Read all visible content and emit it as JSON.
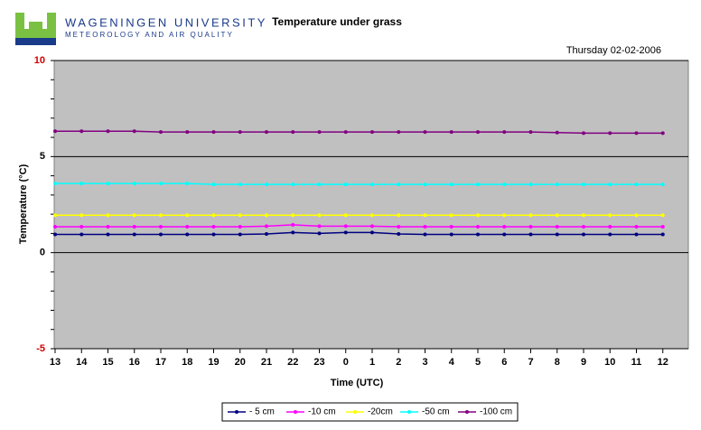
{
  "header": {
    "university": "WAGENINGEN UNIVERSITY",
    "department": "METEOROLOGY AND AIR QUALITY"
  },
  "chart_data": {
    "type": "line",
    "title": "Temperature under grass",
    "subtitle": "Thursday 02-02-2006",
    "x_label": "Time (UTC)",
    "y_label": "Temperature (°C)",
    "categories": [
      "13",
      "14",
      "15",
      "16",
      "17",
      "18",
      "19",
      "20",
      "21",
      "22",
      "23",
      "0",
      "1",
      "2",
      "3",
      "4",
      "5",
      "6",
      "7",
      "8",
      "9",
      "10",
      "11",
      "12"
    ],
    "ylim": [
      -5,
      10
    ],
    "yticks": [
      -5,
      0,
      5,
      10
    ],
    "grid": true,
    "legend": "bottom",
    "series": [
      {
        "name": "- 5 cm",
        "color": "#000080",
        "values": [
          0.95,
          0.95,
          0.95,
          0.95,
          0.95,
          0.95,
          0.95,
          0.95,
          0.97,
          1.05,
          1.0,
          1.05,
          1.05,
          0.97,
          0.95,
          0.95,
          0.95,
          0.95,
          0.95,
          0.95,
          0.95,
          0.95,
          0.95,
          0.95
        ]
      },
      {
        "name": "-10 cm",
        "color": "#ff00ff",
        "values": [
          1.35,
          1.35,
          1.35,
          1.35,
          1.35,
          1.35,
          1.35,
          1.35,
          1.38,
          1.45,
          1.38,
          1.38,
          1.38,
          1.35,
          1.35,
          1.35,
          1.35,
          1.35,
          1.35,
          1.35,
          1.35,
          1.35,
          1.35,
          1.35
        ]
      },
      {
        "name": "-20cm",
        "color": "#ffff00",
        "values": [
          1.95,
          1.95,
          1.95,
          1.95,
          1.95,
          1.95,
          1.95,
          1.95,
          1.95,
          1.95,
          1.95,
          1.95,
          1.95,
          1.95,
          1.95,
          1.95,
          1.95,
          1.95,
          1.95,
          1.95,
          1.95,
          1.95,
          1.95,
          1.95
        ]
      },
      {
        "name": "-50 cm",
        "color": "#00ffff",
        "values": [
          3.6,
          3.6,
          3.6,
          3.6,
          3.6,
          3.6,
          3.55,
          3.55,
          3.55,
          3.55,
          3.55,
          3.55,
          3.55,
          3.55,
          3.55,
          3.55,
          3.55,
          3.55,
          3.55,
          3.55,
          3.55,
          3.55,
          3.55,
          3.55
        ]
      },
      {
        "name": "-100 cm",
        "color": "#800080",
        "values": [
          6.32,
          6.32,
          6.32,
          6.32,
          6.28,
          6.28,
          6.28,
          6.28,
          6.28,
          6.28,
          6.28,
          6.28,
          6.28,
          6.28,
          6.28,
          6.28,
          6.28,
          6.28,
          6.28,
          6.25,
          6.22,
          6.22,
          6.22,
          6.22
        ]
      }
    ]
  }
}
